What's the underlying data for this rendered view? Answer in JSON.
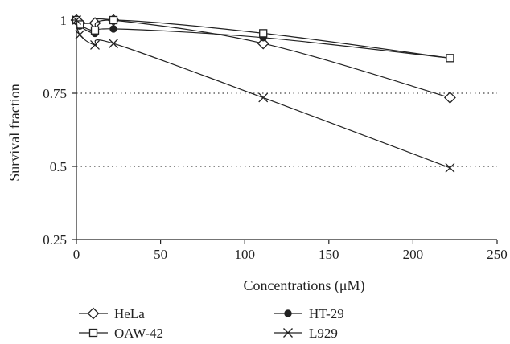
{
  "chart_data": {
    "type": "line",
    "title": "",
    "xlabel": "Concentrations (μM)",
    "ylabel": "Survival fraction",
    "xlim": [
      0,
      250
    ],
    "ylim": [
      0.25,
      1.0
    ],
    "xticks": [
      0,
      50,
      100,
      150,
      200,
      250
    ],
    "yticks": [
      0.25,
      0.5,
      0.75,
      1
    ],
    "ytick_labels": [
      "0.25",
      "0.5",
      "0.75",
      "1"
    ],
    "grid": "dotted horizontal at 0.5 and 0.75",
    "legend_position": "bottom",
    "series": [
      {
        "name": "HeLa",
        "marker": "diamond-open",
        "color": "#222222",
        "x": [
          0,
          2,
          11,
          22,
          111,
          222
        ],
        "y": [
          1.0,
          0.99,
          0.99,
          1.0,
          0.92,
          0.735
        ]
      },
      {
        "name": "HT-29",
        "marker": "circle-filled",
        "color": "#222222",
        "x": [
          0,
          2,
          11,
          22,
          111,
          222
        ],
        "y": [
          1.0,
          0.98,
          0.955,
          0.97,
          0.94,
          0.87
        ]
      },
      {
        "name": "OAW-42",
        "marker": "square-open",
        "color": "#222222",
        "x": [
          0,
          2,
          11,
          22,
          111,
          222
        ],
        "y": [
          1.0,
          0.985,
          0.965,
          1.0,
          0.955,
          0.87
        ]
      },
      {
        "name": "L929",
        "marker": "x",
        "color": "#222222",
        "x": [
          0,
          2,
          11,
          22,
          111,
          222
        ],
        "y": [
          1.0,
          0.95,
          0.915,
          0.92,
          0.735,
          0.495
        ]
      }
    ]
  }
}
